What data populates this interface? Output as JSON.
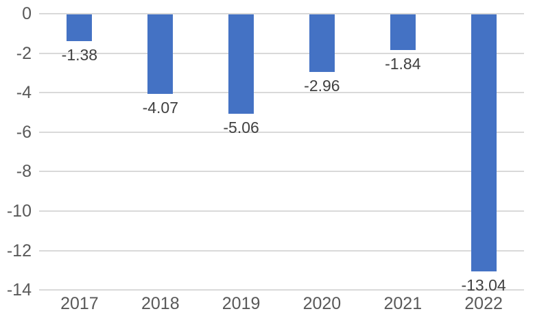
{
  "chart_data": {
    "type": "bar",
    "title": "",
    "xlabel": "",
    "ylabel": "",
    "categories": [
      "2017",
      "2018",
      "2019",
      "2020",
      "2021",
      "2022"
    ],
    "values": [
      -1.38,
      -4.07,
      -5.06,
      -2.96,
      -1.84,
      -13.04
    ],
    "data_labels": [
      "-1.38",
      "-4.07",
      "-5.06",
      "-2.96",
      "-1.84",
      "-13.04"
    ],
    "ylim": [
      -14,
      0
    ],
    "ytick_interval": 2,
    "ytick_labels": [
      "0",
      "-2",
      "-4",
      "-6",
      "-8",
      "-10",
      "-12",
      "-14"
    ],
    "grid": true,
    "legend": false,
    "colors": {
      "bar": "#4472C4",
      "gridline": "#D9D9D9",
      "axis_text": "#595959",
      "data_label_text": "#404040",
      "background": "#FFFFFF"
    }
  }
}
